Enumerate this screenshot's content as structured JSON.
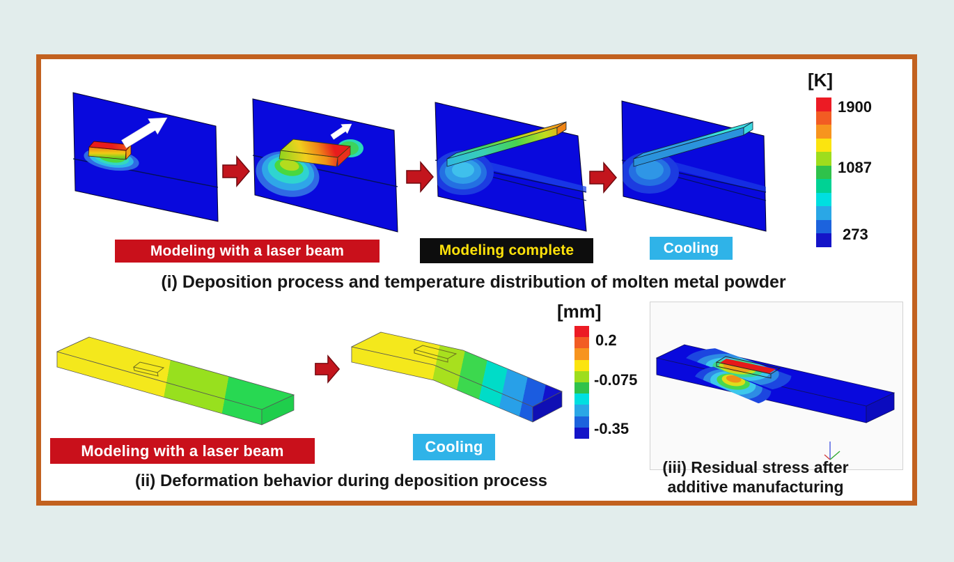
{
  "figure": {
    "top_row": {
      "step_labels": [
        {
          "id": "laser",
          "text": "Modeling with a laser beam"
        },
        {
          "id": "complete",
          "text": "Modeling complete"
        },
        {
          "id": "cooling",
          "text": "Cooling"
        }
      ],
      "caption": "(i) Deposition process and temperature distribution of molten metal powder",
      "legend": {
        "title": "[K]",
        "ticks": [
          "1900",
          "1087",
          "273"
        ],
        "colors": [
          "#ec1b24",
          "#f25c23",
          "#f7941e",
          "#fbe40f",
          "#9edd1d",
          "#2fc24b",
          "#00d294",
          "#00dfe0",
          "#2aa7e6",
          "#1c63dd",
          "#1414c8"
        ]
      }
    },
    "bottom_row": {
      "step_labels": [
        {
          "id": "laser",
          "text": "Modeling with a laser beam"
        },
        {
          "id": "cooling",
          "text": "Cooling"
        }
      ],
      "caption_ii": "(ii) Deformation behavior during deposition process",
      "caption_iii": [
        "(iii) Residual stress after",
        "additive manufacturing"
      ],
      "legend": {
        "title": "[mm]",
        "ticks": [
          "0.2",
          "-0.075",
          "-0.35"
        ],
        "colors": [
          "#ec1b24",
          "#f25c23",
          "#f7941e",
          "#fbe40f",
          "#9edd1d",
          "#2fc24b",
          "#00dfe0",
          "#2aa7e6",
          "#1c63dd",
          "#1414c8"
        ]
      }
    },
    "palette": {
      "page_bg": "#e2edec",
      "panel_bg": "#ffffff",
      "panel_border": "#c2611f",
      "plate_blue": "#0909dd",
      "arrow_red": "#c3151d",
      "label_red_bg": "#c9101b",
      "label_red_text": "#ffffff",
      "label_black_bg": "#0d0d0d",
      "label_black_text": "#ffe20a",
      "label_cyan_bg": "#2fb3e8",
      "label_cyan_text": "#ffffff",
      "caption_text": "#161616"
    }
  }
}
